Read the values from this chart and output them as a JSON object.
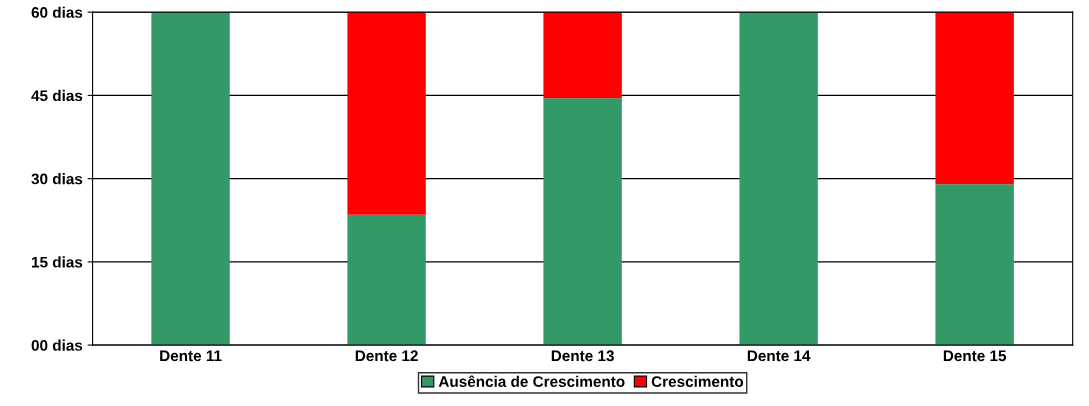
{
  "chart_data": {
    "type": "bar",
    "stacked": true,
    "categories": [
      "Dente 11",
      "Dente 12",
      "Dente 13",
      "Dente 14",
      "Dente 15"
    ],
    "series": [
      {
        "name": "Ausência de Crescimento",
        "color": "#339966",
        "values": [
          60,
          23.5,
          44.5,
          60,
          29
        ]
      },
      {
        "name": "Crescimento",
        "color": "#ff0000",
        "values": [
          0,
          36.5,
          15.5,
          0,
          31
        ]
      }
    ],
    "ylim": [
      0,
      60
    ],
    "yticks": [
      {
        "value": 0,
        "label": "00 dias"
      },
      {
        "value": 15,
        "label": "15 dias"
      },
      {
        "value": 30,
        "label": "30 dias"
      },
      {
        "value": 45,
        "label": "45 dias"
      },
      {
        "value": 60,
        "label": "60 dias"
      }
    ],
    "grid": "y",
    "legend": "bottom"
  }
}
